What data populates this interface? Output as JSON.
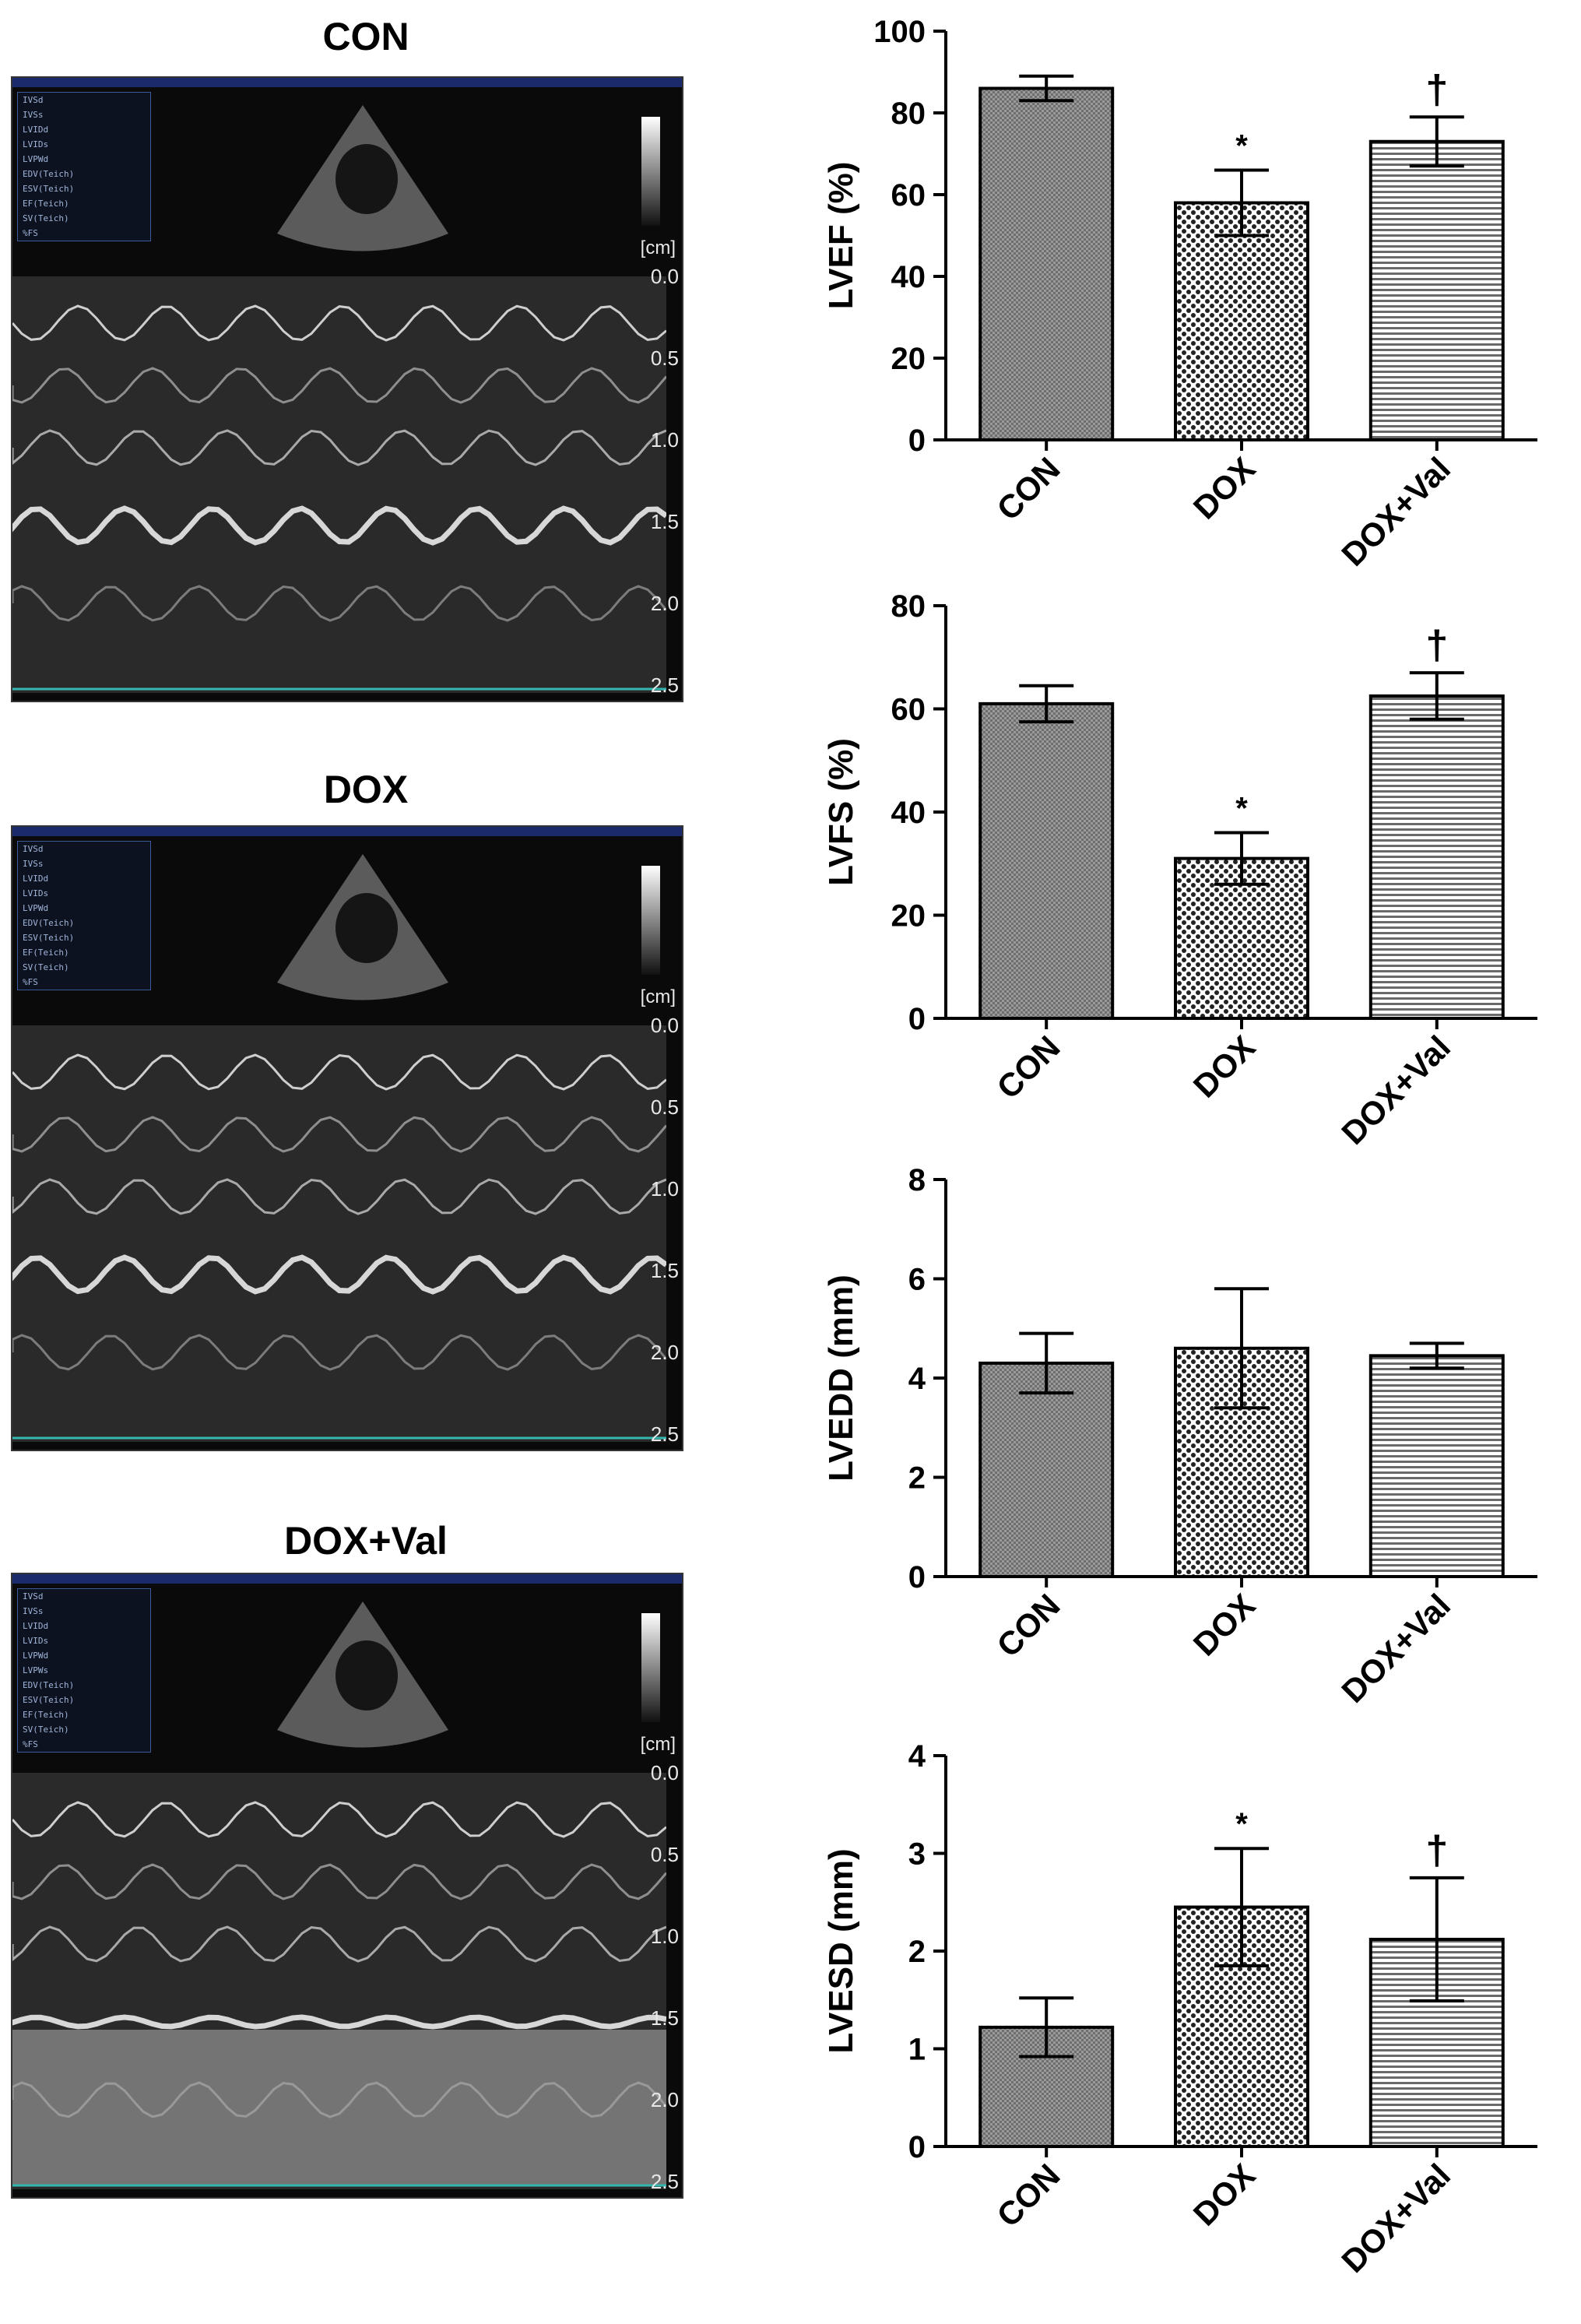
{
  "echo_panels": [
    {
      "title": "CON",
      "rows": [
        "IVSd",
        "IVSs",
        "LVIDd",
        "LVIDs",
        "LVPWd",
        "EDV(Teich)",
        "ESV(Teich)",
        "EF(Teich)",
        "SV(Teich)",
        "%FS"
      ]
    },
    {
      "title": "DOX",
      "rows": [
        "IVSd",
        "IVSs",
        "LVIDd",
        "LVIDs",
        "LVPWd",
        "EDV(Teich)",
        "ESV(Teich)",
        "EF(Teich)",
        "SV(Teich)",
        "%FS"
      ]
    },
    {
      "title": "DOX+Val",
      "rows": [
        "IVSd",
        "IVSs",
        "LVIDd",
        "LVIDs",
        "LVPWd",
        "LVPWs",
        "EDV(Teich)",
        "ESV(Teich)",
        "EF(Teich)",
        "SV(Teich)",
        "%FS"
      ]
    }
  ],
  "echo_scale": {
    "unit": "[cm]",
    "ticks": [
      "0.0",
      "0.5",
      "1.0",
      "1.5",
      "2.0",
      "2.5"
    ]
  },
  "colors": {
    "bar_fill": "#8c8c8c",
    "pattern_dark": "#222222",
    "axis": "#000000"
  },
  "chart_data": [
    {
      "type": "bar",
      "ylabel": "LVEF (%)",
      "categories": [
        "CON",
        "DOX",
        "DOX+Val"
      ],
      "values": [
        86,
        58,
        73
      ],
      "errors": [
        3,
        8,
        6
      ],
      "annotations": [
        "",
        "*",
        "†"
      ],
      "ylim": [
        0,
        100
      ],
      "yticks": [
        "0",
        "20",
        "40",
        "60",
        "80",
        "100"
      ],
      "patterns": [
        "fine",
        "dots",
        "lines"
      ]
    },
    {
      "type": "bar",
      "ylabel": "LVFS (%)",
      "categories": [
        "CON",
        "DOX",
        "DOX+Val"
      ],
      "values": [
        61,
        31,
        62.5
      ],
      "errors": [
        3.5,
        5,
        4.5
      ],
      "annotations": [
        "",
        "*",
        "†"
      ],
      "ylim": [
        0,
        80
      ],
      "yticks": [
        "0",
        "20",
        "40",
        "60",
        "80"
      ],
      "patterns": [
        "fine",
        "dots",
        "lines"
      ]
    },
    {
      "type": "bar",
      "ylabel": "LVEDD (mm)",
      "categories": [
        "CON",
        "DOX",
        "DOX+Val"
      ],
      "values": [
        4.3,
        4.6,
        4.45
      ],
      "errors": [
        0.6,
        1.2,
        0.25
      ],
      "annotations": [
        "",
        "",
        ""
      ],
      "ylim": [
        0,
        8
      ],
      "yticks": [
        "0",
        "2",
        "4",
        "6",
        "8"
      ],
      "patterns": [
        "fine",
        "dots",
        "lines"
      ]
    },
    {
      "type": "bar",
      "ylabel": "LVESD (mm)",
      "categories": [
        "CON",
        "DOX",
        "DOX+Val"
      ],
      "values": [
        1.22,
        2.45,
        2.12
      ],
      "errors": [
        0.3,
        0.6,
        0.63
      ],
      "annotations": [
        "",
        "*",
        "†"
      ],
      "ylim": [
        0,
        4
      ],
      "yticks": [
        "0",
        "1",
        "2",
        "3",
        "4"
      ],
      "patterns": [
        "fine",
        "dots",
        "lines"
      ]
    }
  ]
}
